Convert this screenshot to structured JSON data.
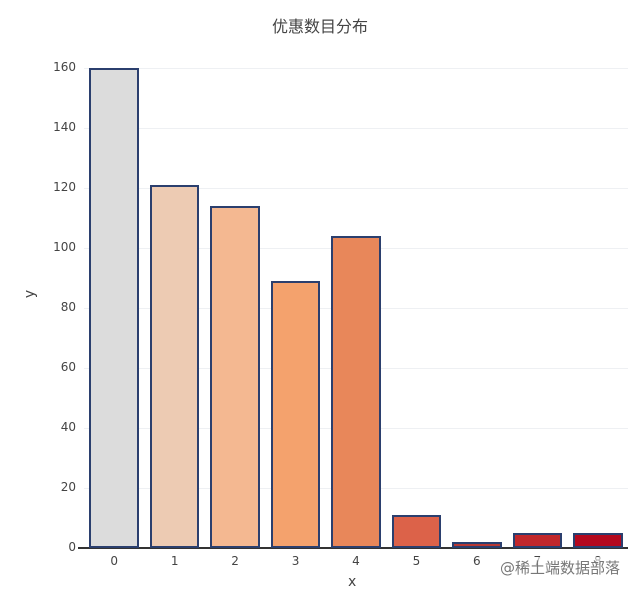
{
  "chart_data": {
    "type": "bar",
    "title": "优惠数目分布",
    "xlabel": "x",
    "ylabel": "y",
    "categories": [
      "0",
      "1",
      "2",
      "3",
      "4",
      "5",
      "6",
      "7",
      "8"
    ],
    "values": [
      160,
      121,
      114,
      89,
      104,
      11,
      2,
      5,
      5
    ],
    "colors": [
      "#dcdcdc",
      "#edcbb3",
      "#f4b891",
      "#f4a26d",
      "#e8875a",
      "#dc6249",
      "#b83832",
      "#c1272b",
      "#b4081e"
    ],
    "ylim": [
      0,
      160
    ],
    "yticks": [
      0,
      20,
      40,
      60,
      80,
      100,
      120,
      140,
      160
    ],
    "grid": true,
    "legend": "none"
  },
  "watermark": "@稀土端数据部落"
}
